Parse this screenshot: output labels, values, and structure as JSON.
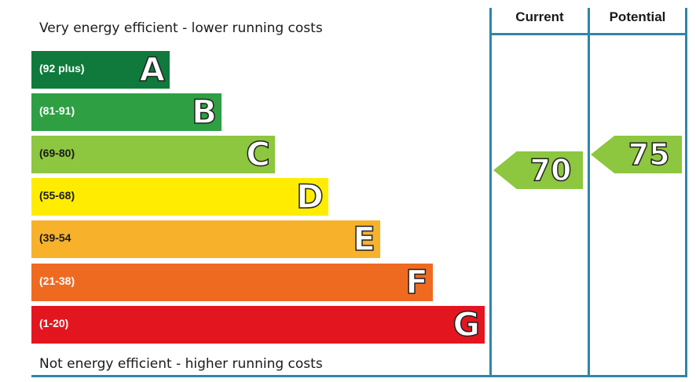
{
  "chart_data": {
    "type": "bar",
    "top_caption": "Very energy efficient - lower running costs",
    "bottom_caption": "Not energy efficient - higher running costs",
    "bands": [
      {
        "range": "(92 plus)",
        "letter": "A",
        "color": "#0f7a3c"
      },
      {
        "range": "(81-91)",
        "letter": "B",
        "color": "#2ea043"
      },
      {
        "range": "(69-80)",
        "letter": "C",
        "color": "#8dc63f"
      },
      {
        "range": "(55-68)",
        "letter": "D",
        "color": "#ffec00"
      },
      {
        "range": "(39-54",
        "letter": "E",
        "color": "#f7b12b"
      },
      {
        "range": "(21-38)",
        "letter": "F",
        "color": "#ef6a21"
      },
      {
        "range": "(1-20)",
        "letter": "G",
        "color": "#e3151f"
      }
    ],
    "columns": {
      "current": "Current",
      "potential": "Potential"
    },
    "ratings": {
      "current": {
        "value": "70",
        "band": "C",
        "color": "#8dc63f"
      },
      "potential": {
        "value": "75",
        "band": "C",
        "color": "#8dc63f"
      }
    }
  }
}
